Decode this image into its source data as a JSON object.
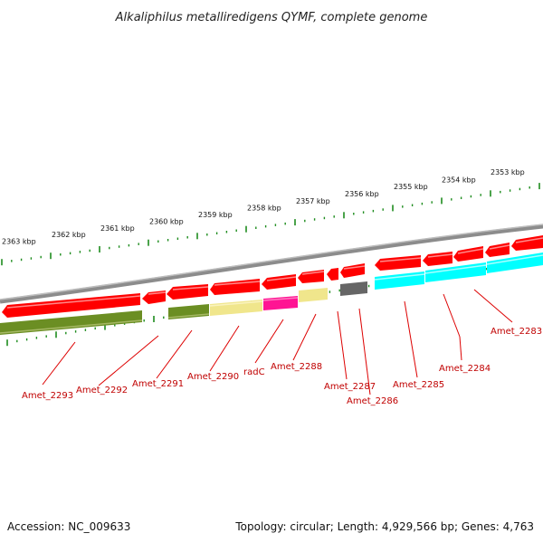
{
  "title": "Alkaliphilus metalliredigens QYMF, complete genome",
  "accession_label": "Accession: NC_009633",
  "topology_label": "Topology: circular; Length: 4,929,566 bp; Genes: 4,763",
  "kbp_ticks": [
    "2363 kbp",
    "2362 kbp",
    "2361 kbp",
    "2360 kbp",
    "2359 kbp",
    "2358 kbp",
    "2357 kbp",
    "2356 kbp",
    "2355 kbp",
    "2354 kbp",
    "2353 kbp"
  ],
  "genes": [
    "Amet_2293",
    "Amet_2292",
    "Amet_2291",
    "Amet_2290",
    "radC",
    "Amet_2288",
    "Amet_2287",
    "Amet_2286",
    "Amet_2285",
    "Amet_2284",
    "Amet_2283"
  ],
  "colors": {
    "cds_red": "#ff0000",
    "olive": "#6b8e23",
    "pale_yellow": "#f0e68c",
    "magenta": "#ff1493",
    "grey": "#666666",
    "cyan": "#00ffff",
    "backbone": "#8c8c8c",
    "tick_green": "#1e8c1e",
    "label_red": "#c00000"
  }
}
